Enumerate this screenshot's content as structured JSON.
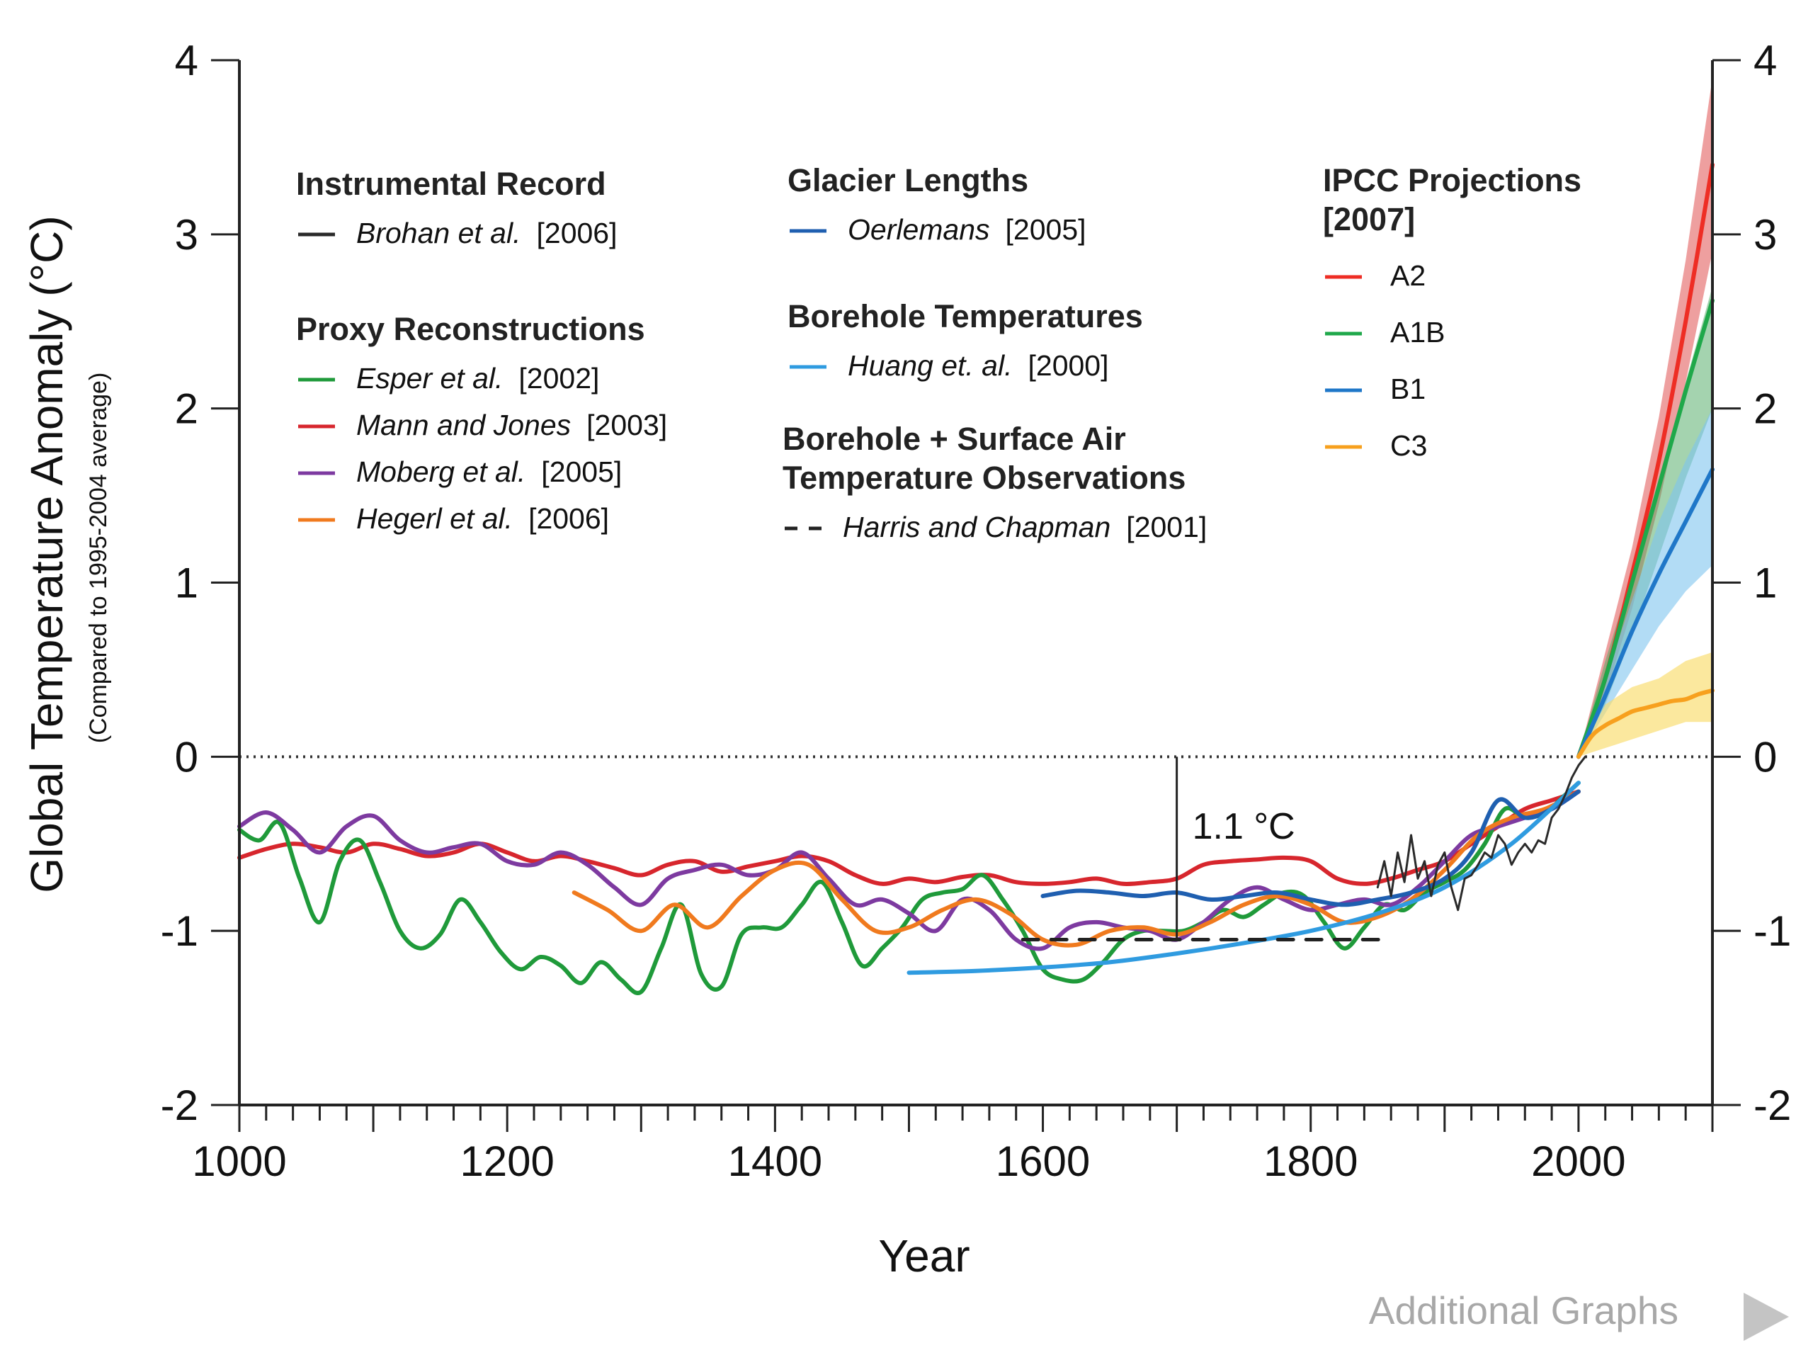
{
  "chart_data": {
    "type": "line",
    "xlabel": "Year",
    "ylabel": "Global Temperature Anomaly (°C)",
    "ylabel_sub": "(Compared to 1995-2004 average)",
    "xlim": [
      1000,
      2100
    ],
    "ylim": [
      -2,
      4
    ],
    "x_ticks": [
      1000,
      1200,
      1400,
      1600,
      1800,
      2000
    ],
    "y_ticks": [
      -2,
      -1,
      0,
      1,
      2,
      3,
      4
    ],
    "annotation": {
      "text": "1.1 °C",
      "x": 1700,
      "y_from": -1.05,
      "y_to": 0
    },
    "groups": [
      {
        "title": "Instrumental Record",
        "items": [
          {
            "author": "Brohan et al.",
            "year": "[2006]",
            "color": "#2a2a2a",
            "dash": false
          }
        ]
      },
      {
        "title": "Proxy Reconstructions",
        "items": [
          {
            "author": "Esper et al.",
            "year": "[2002]",
            "color": "#1f9a3a",
            "dash": false
          },
          {
            "author": "Mann and Jones",
            "year": "[2003]",
            "color": "#d7262d",
            "dash": false
          },
          {
            "author": "Moberg et al.",
            "year": "[2005]",
            "color": "#7d3aa0",
            "dash": false
          },
          {
            "author": "Hegerl et al.",
            "year": "[2006]",
            "color": "#f07a1e",
            "dash": false
          }
        ]
      },
      {
        "title": "Glacier Lengths",
        "items": [
          {
            "author": "Oerlemans",
            "year": "[2005]",
            "color": "#1f5fb0",
            "dash": false
          }
        ]
      },
      {
        "title": "Borehole Temperatures",
        "items": [
          {
            "author": "Huang et. al.",
            "year": "[2000]",
            "color": "#2f9be0",
            "dash": false
          }
        ]
      },
      {
        "title": "Borehole + Surface Air",
        "title2": "Temperature Observations",
        "items": [
          {
            "author": "Harris and Chapman",
            "year": "[2001]",
            "color": "#222222",
            "dash": true
          }
        ]
      },
      {
        "title": "IPCC  Projections",
        "title2": "[2007]",
        "items": [
          {
            "author": "A2",
            "year": "",
            "color": "#ee2d24",
            "dash": false
          },
          {
            "author": "A1B",
            "year": "",
            "color": "#1fa84a",
            "dash": false
          },
          {
            "author": "B1",
            "year": "",
            "color": "#1f77c8",
            "dash": false
          },
          {
            "author": "C3",
            "year": "",
            "color": "#f7a01e",
            "dash": false
          }
        ]
      }
    ],
    "bands": [
      {
        "name": "A2 range",
        "color": "#e05050",
        "opacity": 0.55,
        "x": [
          2000,
          2020,
          2040,
          2060,
          2080,
          2100
        ],
        "lower": [
          0,
          0.35,
          0.85,
          1.45,
          2.15,
          2.9
        ],
        "upper": [
          0,
          0.6,
          1.2,
          1.95,
          2.85,
          3.9
        ]
      },
      {
        "name": "A1B range",
        "color": "#4aa860",
        "opacity": 0.5,
        "x": [
          2000,
          2020,
          2040,
          2060,
          2080,
          2100
        ],
        "lower": [
          0,
          0.3,
          0.7,
          1.15,
          1.6,
          2.0
        ],
        "upper": [
          0,
          0.55,
          1.05,
          1.6,
          2.15,
          2.7
        ]
      },
      {
        "name": "B1 range",
        "color": "#7fc4ee",
        "opacity": 0.6,
        "x": [
          2000,
          2020,
          2040,
          2060,
          2080,
          2100
        ],
        "lower": [
          0,
          0.25,
          0.5,
          0.75,
          0.95,
          1.1
        ],
        "upper": [
          0,
          0.45,
          0.9,
          1.35,
          1.7,
          2.0
        ]
      },
      {
        "name": "C3 range",
        "color": "#f9dc6a",
        "opacity": 0.65,
        "x": [
          2000,
          2020,
          2040,
          2060,
          2080,
          2100
        ],
        "lower": [
          0,
          0.05,
          0.1,
          0.15,
          0.2,
          0.2
        ],
        "upper": [
          0,
          0.3,
          0.4,
          0.45,
          0.55,
          0.6
        ]
      }
    ],
    "series": [
      {
        "name": "Mann and Jones [2003]",
        "color": "#d7262d",
        "x": [
          1000,
          1020,
          1040,
          1060,
          1080,
          1100,
          1120,
          1140,
          1160,
          1180,
          1200,
          1220,
          1240,
          1260,
          1280,
          1300,
          1320,
          1340,
          1360,
          1380,
          1400,
          1420,
          1440,
          1460,
          1480,
          1500,
          1520,
          1540,
          1560,
          1580,
          1600,
          1620,
          1640,
          1660,
          1680,
          1700,
          1720,
          1740,
          1760,
          1780,
          1800,
          1820,
          1840,
          1860,
          1880,
          1900,
          1920,
          1940,
          1960,
          1980,
          2000
        ],
        "y": [
          -0.58,
          -0.53,
          -0.5,
          -0.52,
          -0.55,
          -0.5,
          -0.53,
          -0.57,
          -0.55,
          -0.5,
          -0.55,
          -0.6,
          -0.57,
          -0.6,
          -0.64,
          -0.68,
          -0.62,
          -0.6,
          -0.66,
          -0.63,
          -0.6,
          -0.57,
          -0.6,
          -0.68,
          -0.73,
          -0.7,
          -0.72,
          -0.69,
          -0.68,
          -0.72,
          -0.73,
          -0.72,
          -0.7,
          -0.73,
          -0.72,
          -0.7,
          -0.62,
          -0.6,
          -0.59,
          -0.58,
          -0.6,
          -0.7,
          -0.73,
          -0.7,
          -0.65,
          -0.6,
          -0.5,
          -0.4,
          -0.3,
          -0.25,
          -0.2
        ]
      },
      {
        "name": "Esper et al. [2002]",
        "color": "#1f9a3a",
        "x": [
          1000,
          1015,
          1030,
          1045,
          1060,
          1075,
          1090,
          1105,
          1120,
          1135,
          1150,
          1165,
          1180,
          1195,
          1210,
          1225,
          1240,
          1255,
          1270,
          1285,
          1300,
          1315,
          1330,
          1345,
          1360,
          1375,
          1390,
          1405,
          1420,
          1435,
          1450,
          1465,
          1480,
          1495,
          1510,
          1525,
          1540,
          1555,
          1570,
          1585,
          1600,
          1615,
          1630,
          1645,
          1660,
          1675,
          1690,
          1705,
          1720,
          1735,
          1750,
          1765,
          1780,
          1795,
          1810,
          1825,
          1840,
          1855,
          1870,
          1885,
          1900,
          1915,
          1930,
          1945,
          1960,
          1975,
          1990,
          2000
        ],
        "y": [
          -0.42,
          -0.48,
          -0.38,
          -0.7,
          -0.95,
          -0.6,
          -0.48,
          -0.72,
          -1.0,
          -1.1,
          -1.02,
          -0.82,
          -0.95,
          -1.12,
          -1.22,
          -1.15,
          -1.2,
          -1.3,
          -1.18,
          -1.28,
          -1.35,
          -1.1,
          -0.85,
          -1.25,
          -1.32,
          -1.02,
          -0.98,
          -0.98,
          -0.85,
          -0.72,
          -0.95,
          -1.2,
          -1.1,
          -0.98,
          -0.82,
          -0.78,
          -0.76,
          -0.68,
          -0.82,
          -1.0,
          -1.22,
          -1.28,
          -1.28,
          -1.18,
          -1.05,
          -1.0,
          -1.0,
          -1.0,
          -0.95,
          -0.88,
          -0.92,
          -0.85,
          -0.78,
          -0.8,
          -0.95,
          -1.1,
          -0.98,
          -0.85,
          -0.88,
          -0.78,
          -0.72,
          -0.65,
          -0.5,
          -0.3,
          -0.35,
          -0.32,
          -0.22,
          -0.15
        ]
      },
      {
        "name": "Moberg et al. [2005]",
        "color": "#7d3aa0",
        "x": [
          1000,
          1020,
          1040,
          1060,
          1080,
          1100,
          1120,
          1140,
          1160,
          1180,
          1200,
          1220,
          1240,
          1260,
          1280,
          1300,
          1320,
          1340,
          1360,
          1380,
          1400,
          1420,
          1440,
          1460,
          1480,
          1500,
          1520,
          1540,
          1560,
          1580,
          1600,
          1620,
          1640,
          1660,
          1680,
          1700,
          1720,
          1740,
          1760,
          1780,
          1800,
          1820,
          1840,
          1860,
          1880,
          1900,
          1920,
          1940,
          1960,
          1980,
          2000
        ],
        "y": [
          -0.4,
          -0.32,
          -0.42,
          -0.55,
          -0.4,
          -0.34,
          -0.48,
          -0.55,
          -0.52,
          -0.5,
          -0.6,
          -0.62,
          -0.55,
          -0.62,
          -0.75,
          -0.85,
          -0.7,
          -0.65,
          -0.62,
          -0.68,
          -0.65,
          -0.55,
          -0.7,
          -0.85,
          -0.82,
          -0.9,
          -1.0,
          -0.82,
          -0.88,
          -1.05,
          -1.1,
          -0.98,
          -0.95,
          -0.98,
          -1.0,
          -1.05,
          -0.95,
          -0.82,
          -0.75,
          -0.82,
          -0.88,
          -0.85,
          -0.82,
          -0.85,
          -0.75,
          -0.6,
          -0.45,
          -0.4,
          -0.35,
          -0.3,
          -0.2
        ]
      },
      {
        "name": "Hegerl et al. [2006]",
        "color": "#f07a1e",
        "x": [
          1250,
          1275,
          1300,
          1325,
          1350,
          1375,
          1400,
          1425,
          1450,
          1475,
          1500,
          1525,
          1550,
          1575,
          1600,
          1625,
          1650,
          1675,
          1700,
          1725,
          1750,
          1775,
          1800,
          1825,
          1850,
          1875,
          1900,
          1925,
          1950,
          1975,
          2000
        ],
        "y": [
          -0.78,
          -0.88,
          -1.0,
          -0.85,
          -0.98,
          -0.8,
          -0.65,
          -0.62,
          -0.82,
          -1.0,
          -0.98,
          -0.88,
          -0.82,
          -0.9,
          -1.05,
          -1.08,
          -1.0,
          -0.98,
          -1.02,
          -0.95,
          -0.85,
          -0.8,
          -0.85,
          -0.95,
          -0.92,
          -0.82,
          -0.65,
          -0.45,
          -0.35,
          -0.3,
          -0.2
        ]
      },
      {
        "name": "Oerlemans [2005]",
        "color": "#1f5fb0",
        "x": [
          1600,
          1625,
          1650,
          1675,
          1700,
          1725,
          1750,
          1775,
          1800,
          1825,
          1850,
          1875,
          1900,
          1920,
          1940,
          1960,
          1980,
          2000
        ],
        "y": [
          -0.8,
          -0.77,
          -0.78,
          -0.8,
          -0.78,
          -0.82,
          -0.8,
          -0.78,
          -0.82,
          -0.85,
          -0.82,
          -0.78,
          -0.7,
          -0.55,
          -0.25,
          -0.35,
          -0.3,
          -0.2
        ]
      },
      {
        "name": "Huang et. al. [2000]",
        "color": "#2f9be0",
        "x": [
          1500,
          1550,
          1600,
          1650,
          1700,
          1750,
          1800,
          1850,
          1900,
          1950,
          2000
        ],
        "y": [
          -1.24,
          -1.23,
          -1.21,
          -1.18,
          -1.13,
          -1.07,
          -1.0,
          -0.9,
          -0.75,
          -0.5,
          -0.15
        ]
      },
      {
        "name": "Harris and Chapman [2001]",
        "color": "#222222",
        "dash": true,
        "x": [
          1585,
          1860
        ],
        "y": [
          -1.05,
          -1.05
        ]
      },
      {
        "name": "Brohan et al. [2006]",
        "color": "#2a2a2a",
        "thin": true,
        "x": [
          1850,
          1855,
          1860,
          1865,
          1870,
          1875,
          1880,
          1885,
          1890,
          1895,
          1900,
          1905,
          1910,
          1915,
          1920,
          1925,
          1930,
          1935,
          1940,
          1945,
          1950,
          1955,
          1960,
          1965,
          1970,
          1975,
          1980,
          1985,
          1990,
          1995,
          2000,
          2005
        ],
        "y": [
          -0.75,
          -0.6,
          -0.8,
          -0.55,
          -0.72,
          -0.45,
          -0.7,
          -0.6,
          -0.8,
          -0.62,
          -0.55,
          -0.75,
          -0.88,
          -0.7,
          -0.68,
          -0.62,
          -0.55,
          -0.58,
          -0.45,
          -0.5,
          -0.62,
          -0.55,
          -0.5,
          -0.55,
          -0.48,
          -0.5,
          -0.35,
          -0.3,
          -0.22,
          -0.12,
          -0.05,
          0.0
        ]
      },
      {
        "name": "A2",
        "color": "#ee2d24",
        "x": [
          2000,
          2020,
          2040,
          2060,
          2080,
          2100
        ],
        "y": [
          0,
          0.45,
          1.05,
          1.7,
          2.5,
          3.4
        ]
      },
      {
        "name": "A1B",
        "color": "#1fa84a",
        "x": [
          2000,
          2020,
          2040,
          2060,
          2080,
          2100
        ],
        "y": [
          0,
          0.45,
          1.0,
          1.55,
          2.1,
          2.62
        ]
      },
      {
        "name": "B1",
        "color": "#1f77c8",
        "x": [
          2000,
          2020,
          2040,
          2060,
          2080,
          2100
        ],
        "y": [
          0,
          0.35,
          0.72,
          1.05,
          1.35,
          1.65
        ]
      },
      {
        "name": "C3",
        "color": "#f7a01e",
        "x": [
          2000,
          2010,
          2020,
          2030,
          2040,
          2050,
          2060,
          2070,
          2080,
          2090,
          2100
        ],
        "y": [
          0,
          0.12,
          0.18,
          0.22,
          0.26,
          0.28,
          0.3,
          0.32,
          0.33,
          0.36,
          0.38
        ]
      }
    ]
  },
  "footer": {
    "label": "Additional Graphs",
    "arrow_icon": "play-arrow-icon"
  }
}
